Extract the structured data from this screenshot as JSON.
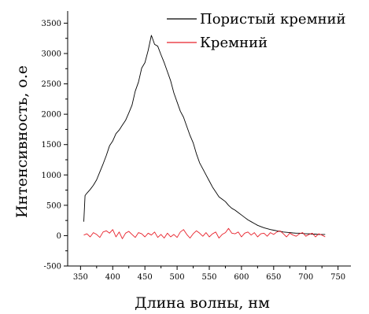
{
  "chart_data": {
    "type": "line",
    "title": "",
    "xlabel": "Длина волны, нм",
    "ylabel": "Интенсивность, о.е",
    "xlim": [
      330,
      770
    ],
    "ylim": [
      -500,
      3700
    ],
    "grid": false,
    "legend_position": "top-right",
    "x_ticks": [
      350,
      400,
      450,
      500,
      550,
      600,
      650,
      700,
      750
    ],
    "y_ticks": [
      -500,
      0,
      500,
      1000,
      1500,
      2000,
      2500,
      3000,
      3500
    ],
    "series": [
      {
        "name": "Пористый кремний",
        "color": "#000000",
        "points": [
          [
            355,
            230
          ],
          [
            357,
            660
          ],
          [
            360,
            700
          ],
          [
            365,
            760
          ],
          [
            370,
            830
          ],
          [
            375,
            920
          ],
          [
            380,
            1050
          ],
          [
            385,
            1180
          ],
          [
            390,
            1320
          ],
          [
            395,
            1480
          ],
          [
            400,
            1560
          ],
          [
            405,
            1680
          ],
          [
            410,
            1740
          ],
          [
            415,
            1820
          ],
          [
            420,
            1900
          ],
          [
            425,
            2020
          ],
          [
            430,
            2150
          ],
          [
            435,
            2380
          ],
          [
            440,
            2530
          ],
          [
            445,
            2760
          ],
          [
            450,
            2850
          ],
          [
            455,
            3050
          ],
          [
            460,
            3300
          ],
          [
            465,
            3150
          ],
          [
            470,
            3120
          ],
          [
            475,
            2980
          ],
          [
            480,
            2850
          ],
          [
            485,
            2700
          ],
          [
            490,
            2550
          ],
          [
            495,
            2350
          ],
          [
            500,
            2200
          ],
          [
            505,
            2050
          ],
          [
            510,
            1950
          ],
          [
            515,
            1800
          ],
          [
            520,
            1650
          ],
          [
            525,
            1530
          ],
          [
            530,
            1350
          ],
          [
            535,
            1200
          ],
          [
            540,
            1100
          ],
          [
            545,
            1000
          ],
          [
            550,
            900
          ],
          [
            555,
            800
          ],
          [
            560,
            720
          ],
          [
            565,
            640
          ],
          [
            570,
            600
          ],
          [
            575,
            560
          ],
          [
            580,
            500
          ],
          [
            585,
            450
          ],
          [
            590,
            420
          ],
          [
            595,
            380
          ],
          [
            600,
            340
          ],
          [
            605,
            300
          ],
          [
            610,
            260
          ],
          [
            615,
            230
          ],
          [
            620,
            200
          ],
          [
            625,
            170
          ],
          [
            630,
            150
          ],
          [
            635,
            130
          ],
          [
            640,
            115
          ],
          [
            645,
            100
          ],
          [
            650,
            90
          ],
          [
            655,
            80
          ],
          [
            660,
            70
          ],
          [
            665,
            60
          ],
          [
            670,
            55
          ],
          [
            675,
            50
          ],
          [
            680,
            45
          ],
          [
            685,
            40
          ],
          [
            690,
            40
          ],
          [
            695,
            35
          ],
          [
            700,
            30
          ],
          [
            705,
            30
          ],
          [
            710,
            25
          ],
          [
            715,
            25
          ],
          [
            720,
            20
          ],
          [
            725,
            20
          ],
          [
            730,
            20
          ]
        ]
      },
      {
        "name": "Кремний",
        "color": "#e8202a",
        "points": [
          [
            355,
            10
          ],
          [
            360,
            30
          ],
          [
            365,
            -20
          ],
          [
            370,
            50
          ],
          [
            375,
            20
          ],
          [
            380,
            -30
          ],
          [
            385,
            60
          ],
          [
            390,
            80
          ],
          [
            395,
            40
          ],
          [
            400,
            100
          ],
          [
            405,
            -20
          ],
          [
            410,
            60
          ],
          [
            415,
            -50
          ],
          [
            420,
            40
          ],
          [
            425,
            70
          ],
          [
            430,
            20
          ],
          [
            435,
            -30
          ],
          [
            440,
            50
          ],
          [
            445,
            30
          ],
          [
            450,
            -20
          ],
          [
            455,
            40
          ],
          [
            460,
            10
          ],
          [
            465,
            60
          ],
          [
            470,
            -30
          ],
          [
            475,
            20
          ],
          [
            480,
            -40
          ],
          [
            485,
            40
          ],
          [
            490,
            -20
          ],
          [
            495,
            20
          ],
          [
            500,
            -30
          ],
          [
            505,
            60
          ],
          [
            510,
            100
          ],
          [
            515,
            20
          ],
          [
            520,
            -40
          ],
          [
            525,
            30
          ],
          [
            530,
            80
          ],
          [
            535,
            40
          ],
          [
            540,
            -10
          ],
          [
            545,
            50
          ],
          [
            550,
            -20
          ],
          [
            555,
            30
          ],
          [
            560,
            60
          ],
          [
            565,
            -40
          ],
          [
            570,
            20
          ],
          [
            575,
            50
          ],
          [
            580,
            120
          ],
          [
            585,
            40
          ],
          [
            590,
            30
          ],
          [
            595,
            60
          ],
          [
            600,
            -20
          ],
          [
            605,
            40
          ],
          [
            610,
            60
          ],
          [
            615,
            10
          ],
          [
            620,
            50
          ],
          [
            625,
            -20
          ],
          [
            630,
            30
          ],
          [
            635,
            40
          ],
          [
            640,
            -10
          ],
          [
            645,
            50
          ],
          [
            650,
            20
          ],
          [
            655,
            60
          ],
          [
            660,
            80
          ],
          [
            665,
            30
          ],
          [
            670,
            -20
          ],
          [
            675,
            40
          ],
          [
            680,
            10
          ],
          [
            685,
            -10
          ],
          [
            690,
            30
          ],
          [
            695,
            50
          ],
          [
            700,
            -10
          ],
          [
            705,
            20
          ],
          [
            710,
            40
          ],
          [
            715,
            -20
          ],
          [
            720,
            30
          ],
          [
            725,
            10
          ],
          [
            730,
            -20
          ]
        ]
      }
    ]
  }
}
